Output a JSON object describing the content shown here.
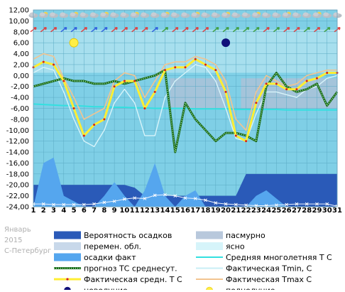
{
  "period": {
    "month": "Январь",
    "year": "2015",
    "city": "С-Петербург"
  },
  "chart_data": {
    "type": "line",
    "title": "",
    "xlabel": "",
    "ylabel": "",
    "ylim": [
      -24,
      12
    ],
    "x": [
      1,
      2,
      3,
      4,
      5,
      6,
      7,
      8,
      9,
      10,
      11,
      12,
      13,
      14,
      15,
      16,
      17,
      18,
      19,
      20,
      21,
      22,
      23,
      24,
      25,
      26,
      27,
      28,
      29,
      30,
      31
    ],
    "y_ticks": [
      "12,00",
      "10,00",
      "8,00",
      "6,00",
      "4,00",
      "2,00",
      "0,00",
      "-2,00",
      "-4,00",
      "-6,00",
      "-8,00",
      "-10,00",
      "-12,00",
      "-14,00",
      "-16,00",
      "-18,00",
      "-20,00",
      "-22,00",
      "-24,00"
    ],
    "x_ticks": [
      "1",
      "2",
      "3",
      "4",
      "5",
      "6",
      "7",
      "8",
      "9",
      "10",
      "11",
      "12",
      "13",
      "14",
      "15",
      "16",
      "17",
      "18",
      "19",
      "20",
      "21",
      "22",
      "23",
      "24",
      "25",
      "26",
      "27",
      "28",
      "29",
      "30",
      "31"
    ],
    "series": [
      {
        "name": "Фактическая средн. Т С",
        "values": [
          1.5,
          2.5,
          2,
          -1,
          -6,
          -11,
          -9,
          -8,
          -2,
          -1,
          -1,
          -6,
          -3,
          1,
          1.5,
          1.5,
          3,
          2,
          1,
          -3,
          -11,
          -12,
          -5,
          -1.5,
          -1.5,
          -2.5,
          -2.5,
          -1,
          -0.5,
          0.5,
          0.5
        ]
      },
      {
        "name": "Фактическая Tmax С",
        "values": [
          3,
          4,
          3.5,
          -0.5,
          -4,
          -8,
          -7,
          -6,
          -1,
          0.5,
          0,
          -4,
          -1,
          2,
          2.5,
          2.5,
          3.5,
          3,
          2,
          -1,
          -8,
          -10,
          -3,
          0,
          -1,
          -2,
          -1.5,
          0,
          0.5,
          1,
          1
        ]
      },
      {
        "name": "Фактическая Tmin, С",
        "values": [
          0.5,
          1.5,
          1,
          -3,
          -8,
          -12,
          -13,
          -10,
          -5,
          -2.5,
          -5,
          -11,
          -11,
          -4,
          -1,
          0.5,
          2,
          1.5,
          -1,
          -6,
          -11.5,
          -12,
          -7,
          -3,
          -3,
          -3.5,
          -4,
          -2.5,
          -2,
          -0.5,
          0
        ]
      },
      {
        "name": "прогноз ТС среднесут.",
        "values": [
          -2,
          -1.5,
          -1,
          -0.5,
          -1,
          -1,
          -1.5,
          -1.5,
          -1,
          -1.5,
          -1,
          -0.5,
          0,
          1,
          -14,
          -5,
          -8,
          -10,
          -12,
          -10.5,
          -10.5,
          -11,
          -12,
          -2,
          0.5,
          -2,
          -3,
          -2.5,
          -1.5,
          -5.5,
          -3
        ]
      },
      {
        "name": "Средняя многолетняя Т С",
        "values": [
          -5.2,
          -5.3,
          -5.4,
          -5.5,
          -5.5,
          -5.6,
          -5.7,
          -5.7,
          -5.8,
          -5.8,
          -5.9,
          -5.9,
          -6,
          -6,
          -6,
          -6,
          -6.1,
          -6.1,
          -6.1,
          -6.1,
          -6.2,
          -6.2,
          -6.2,
          -6.2,
          -6.2,
          -6.3,
          -6.3,
          -6.3,
          -6.3,
          -6.3,
          -6.3
        ]
      },
      {
        "name": "Вероятность осадков",
        "values": [
          -20,
          -20,
          -20,
          -20,
          -20,
          -20,
          -20,
          -20,
          -20,
          -20,
          -20.5,
          -22,
          -22,
          -22,
          -22,
          -22,
          -22,
          -22,
          -22,
          -22,
          -22,
          -18,
          -18,
          -18,
          -18,
          -18,
          -18,
          -18,
          -18,
          -18,
          -18
        ]
      },
      {
        "name": "осадки факт",
        "values": [
          -24,
          -16,
          -15,
          -22,
          -23,
          -24,
          -24,
          -22,
          -19.5,
          -22,
          -24,
          -21,
          -16,
          -22,
          -24,
          -22,
          -21,
          -24,
          -24,
          -24,
          -24,
          -24,
          -22,
          -21,
          -22.5,
          -24,
          -24,
          -24,
          -24,
          -24,
          -24
        ]
      },
      {
        "name": "",
        "values": [
          -23.5,
          -23.5,
          -23.6,
          -23.6,
          -23.6,
          -23.6,
          -23.5,
          -23.2,
          -23,
          -22.6,
          -22.4,
          -22.5,
          -21.9,
          -21.8,
          -22,
          -22.4,
          -22.5,
          -22.8,
          -23.3,
          -23.5,
          -23.6,
          -23.7,
          -23.8,
          -23.8,
          -23.7,
          -23.6,
          -23.5,
          -23.5,
          -23.5,
          -23.5,
          -23.9
        ]
      }
    ],
    "overcast_bands": [
      [
        14.5,
        20
      ],
      [
        21.5,
        31
      ]
    ],
    "full_moon_day": 5,
    "new_moon_day": 20,
    "wind_arrow_colors": [
      "#e04040",
      "#e04040",
      "#e04040",
      "#3060e0",
      "#3060e0",
      "#e04040",
      "#3060e0",
      "#3060e0",
      "#e04040",
      "#e04040",
      "#e04040",
      "#e04040",
      "#3060e0",
      "#40a040",
      "#e04040",
      "#e04040",
      "#e04040",
      "#e04040",
      "#40a040",
      "#40a040",
      "#40a040",
      "#40a040",
      "#40a040",
      "#e04040",
      "#40a040",
      "#e04040",
      "#e04040",
      "#40a040",
      "#e04040",
      "#40a040",
      "#e04040"
    ],
    "colors": {
      "plot_bg": "#7fcfe6",
      "light_band": "#c8ecf4",
      "overcast": "#a8c2d8",
      "precip_prob": "#2a5ab8",
      "precip_fact": "#55a6ee",
      "mean": "#ffee33",
      "tmax": "#f2c490",
      "tmin": "#d8f4fa",
      "forecast": "#1e6b1e",
      "climate": "#33e0e0"
    }
  },
  "legend": [
    {
      "label": "Вероятность осадков",
      "symbol": "box",
      "color": "#2a5ab8"
    },
    {
      "label": "пасмурно",
      "symbol": "box",
      "color": "#b8c8dc"
    },
    {
      "label": "перемен. обл.",
      "symbol": "box",
      "color": "#c8d8ea"
    },
    {
      "label": "ясно",
      "symbol": "box",
      "color": "#d6f4fa"
    },
    {
      "label": "осадки факт",
      "symbol": "box",
      "color": "#55a6ee"
    },
    {
      "label": "Средняя многолетняя Т С",
      "symbol": "line",
      "color": "#33e0e0"
    },
    {
      "label": "прогноз ТС среднесут.",
      "symbol": "dotted",
      "color": "#1e6b1e"
    },
    {
      "label": "Фактическая Tmin, С",
      "symbol": "line",
      "color": "#c8eef6"
    },
    {
      "label": "Фактическая средн. Т С",
      "symbol": "thick",
      "color": "#ffee33"
    },
    {
      "label": "Фактическая Tmax С",
      "symbol": "line",
      "color": "#f2c490"
    },
    {
      "label": "новолуние",
      "symbol": "dot",
      "color": "#10107a"
    },
    {
      "label": "полнолуние",
      "symbol": "dot",
      "color": "#ffee44"
    }
  ]
}
